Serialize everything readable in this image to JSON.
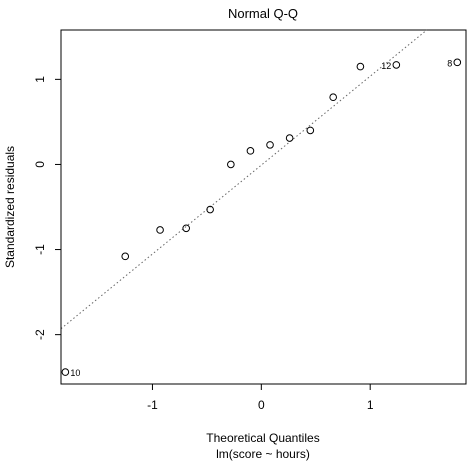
{
  "chart_data": {
    "type": "scatter",
    "title": "Normal Q-Q",
    "xlabel": "Theoretical Quantiles",
    "subtitle": "lm(score ~ hours)",
    "ylabel": "Standardized residuals",
    "xlim": [
      -1.84,
      1.88
    ],
    "ylim": [
      -2.58,
      1.58
    ],
    "xticks": [
      -1,
      0,
      1
    ],
    "xtick_labels": [
      "-1",
      "0",
      "1"
    ],
    "yticks": [
      -2,
      -1,
      0,
      1
    ],
    "ytick_labels": [
      "-2",
      "-1",
      "0",
      "1"
    ],
    "grid": false,
    "points": [
      {
        "x": -1.8,
        "y": -2.44,
        "label": "10"
      },
      {
        "x": -1.25,
        "y": -1.08,
        "label": ""
      },
      {
        "x": -0.93,
        "y": -0.77,
        "label": ""
      },
      {
        "x": -0.69,
        "y": -0.75,
        "label": ""
      },
      {
        "x": -0.47,
        "y": -0.53,
        "label": ""
      },
      {
        "x": -0.28,
        "y": 0.0,
        "label": ""
      },
      {
        "x": -0.1,
        "y": 0.16,
        "label": ""
      },
      {
        "x": 0.08,
        "y": 0.23,
        "label": ""
      },
      {
        "x": 0.26,
        "y": 0.31,
        "label": ""
      },
      {
        "x": 0.45,
        "y": 0.4,
        "label": ""
      },
      {
        "x": 0.66,
        "y": 0.79,
        "label": ""
      },
      {
        "x": 0.91,
        "y": 1.15,
        "label": ""
      },
      {
        "x": 1.24,
        "y": 1.17,
        "label": "12"
      },
      {
        "x": 1.8,
        "y": 1.2,
        "label": "8"
      }
    ],
    "reference_line": {
      "x1": -1.84,
      "y1": -1.93,
      "x2": 1.52,
      "y2": 1.58,
      "style": "dotted"
    }
  }
}
